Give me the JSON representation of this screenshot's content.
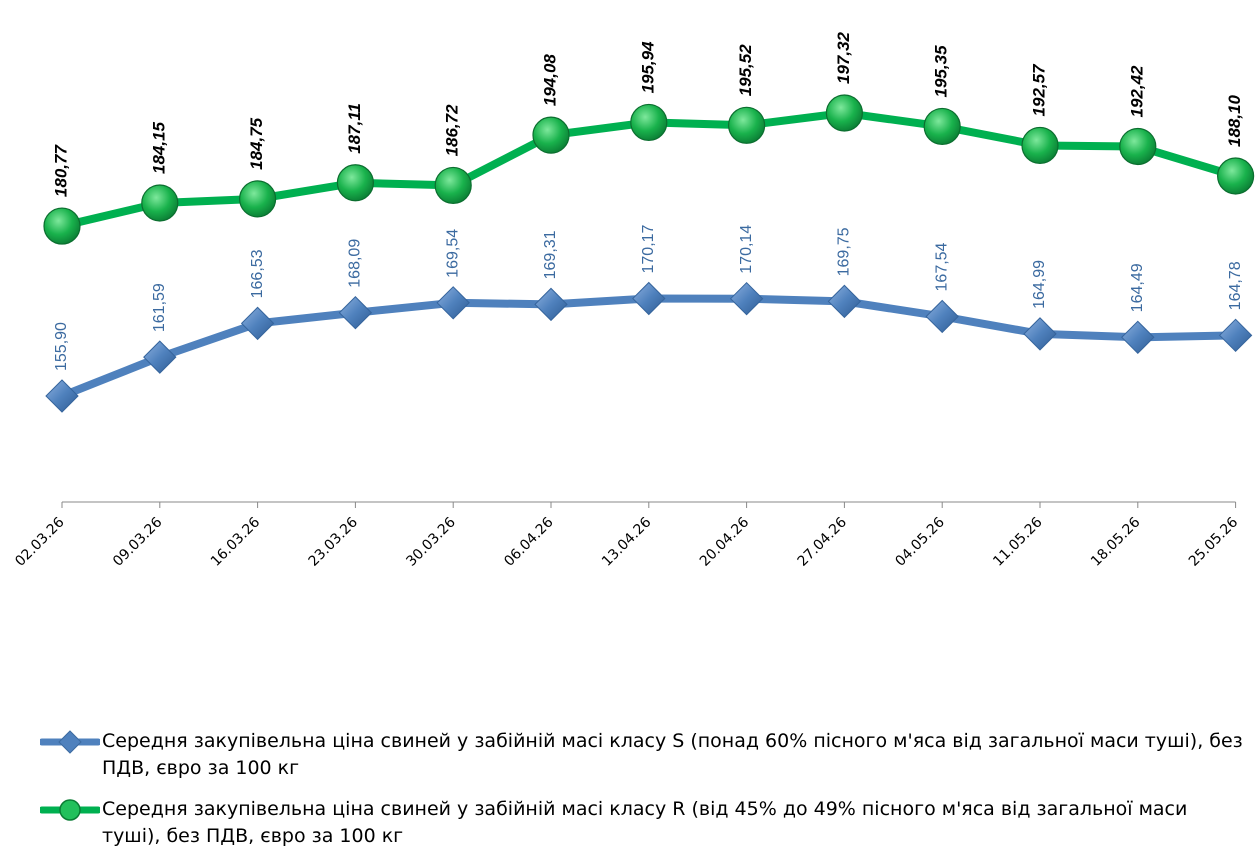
{
  "chart_data": {
    "type": "line",
    "categories": [
      "02.03.26",
      "09.03.26",
      "16.03.26",
      "23.03.26",
      "30.03.26",
      "06.04.26",
      "13.04.26",
      "20.04.26",
      "27.04.26",
      "04.05.26",
      "11.05.26",
      "18.05.26",
      "25.05.26"
    ],
    "series": [
      {
        "name": "Середня закупівельна ціна свиней у забійній масі класу S (понад 60% пісного м'яса від загальної маси туші), без ПДВ, євро за 100 кг",
        "values": [
          155.9,
          161.59,
          166.53,
          168.09,
          169.54,
          169.31,
          170.17,
          170.14,
          169.75,
          167.54,
          164.99,
          164.49,
          164.78
        ],
        "labels": [
          "155,90",
          "161,59",
          "166,53",
          "168,09",
          "169,54",
          "169,31",
          "170,17",
          "170,14",
          "169,75",
          "167,54",
          "164,99",
          "164,49",
          "164,78"
        ],
        "color": "#4f81bd",
        "marker": "diamond"
      },
      {
        "name": "Середня закупівельна ціна свиней у забійній масі класу R (від 45% до 49% пісного м'яса від загальної маси туші), без ПДВ, євро за 100 кг",
        "values": [
          180.77,
          184.15,
          184.75,
          187.11,
          186.72,
          194.08,
          195.94,
          195.52,
          197.32,
          195.35,
          192.57,
          192.42,
          188.1
        ],
        "labels": [
          "180,77",
          "184,15",
          "184,75",
          "187,11",
          "186,72",
          "194,08",
          "195,94",
          "195,52",
          "197,32",
          "195,35",
          "192,57",
          "192,42",
          "188,10"
        ],
        "color": "#00b050",
        "marker": "circle"
      }
    ],
    "y_axis_visible": false,
    "grid": false,
    "legend_position": "bottom"
  }
}
